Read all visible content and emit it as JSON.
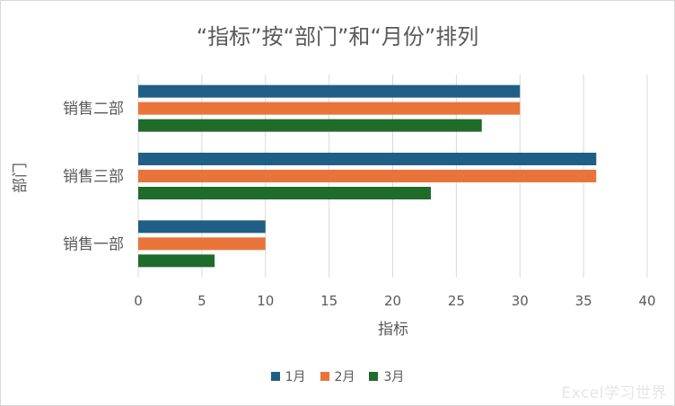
{
  "chart_data": {
    "type": "bar",
    "orientation": "horizontal",
    "title": "“指标”按“部门”和“月份”排列",
    "xlabel": "指标",
    "ylabel": "部门",
    "categories": [
      "销售二部",
      "销售三部",
      "销售一部"
    ],
    "series": [
      {
        "name": "1月",
        "color": "#1f5f85",
        "values": [
          30,
          36,
          10
        ]
      },
      {
        "name": "2月",
        "color": "#e9743a",
        "values": [
          30,
          36,
          10
        ]
      },
      {
        "name": "3月",
        "color": "#1e6b2a",
        "values": [
          27,
          23,
          6
        ]
      }
    ],
    "xlim": [
      0,
      40
    ],
    "xticks": [
      0,
      5,
      10,
      15,
      20,
      25,
      30,
      35,
      40
    ],
    "grid": true,
    "legend_position": "bottom"
  },
  "watermark": "Excel学习世界"
}
